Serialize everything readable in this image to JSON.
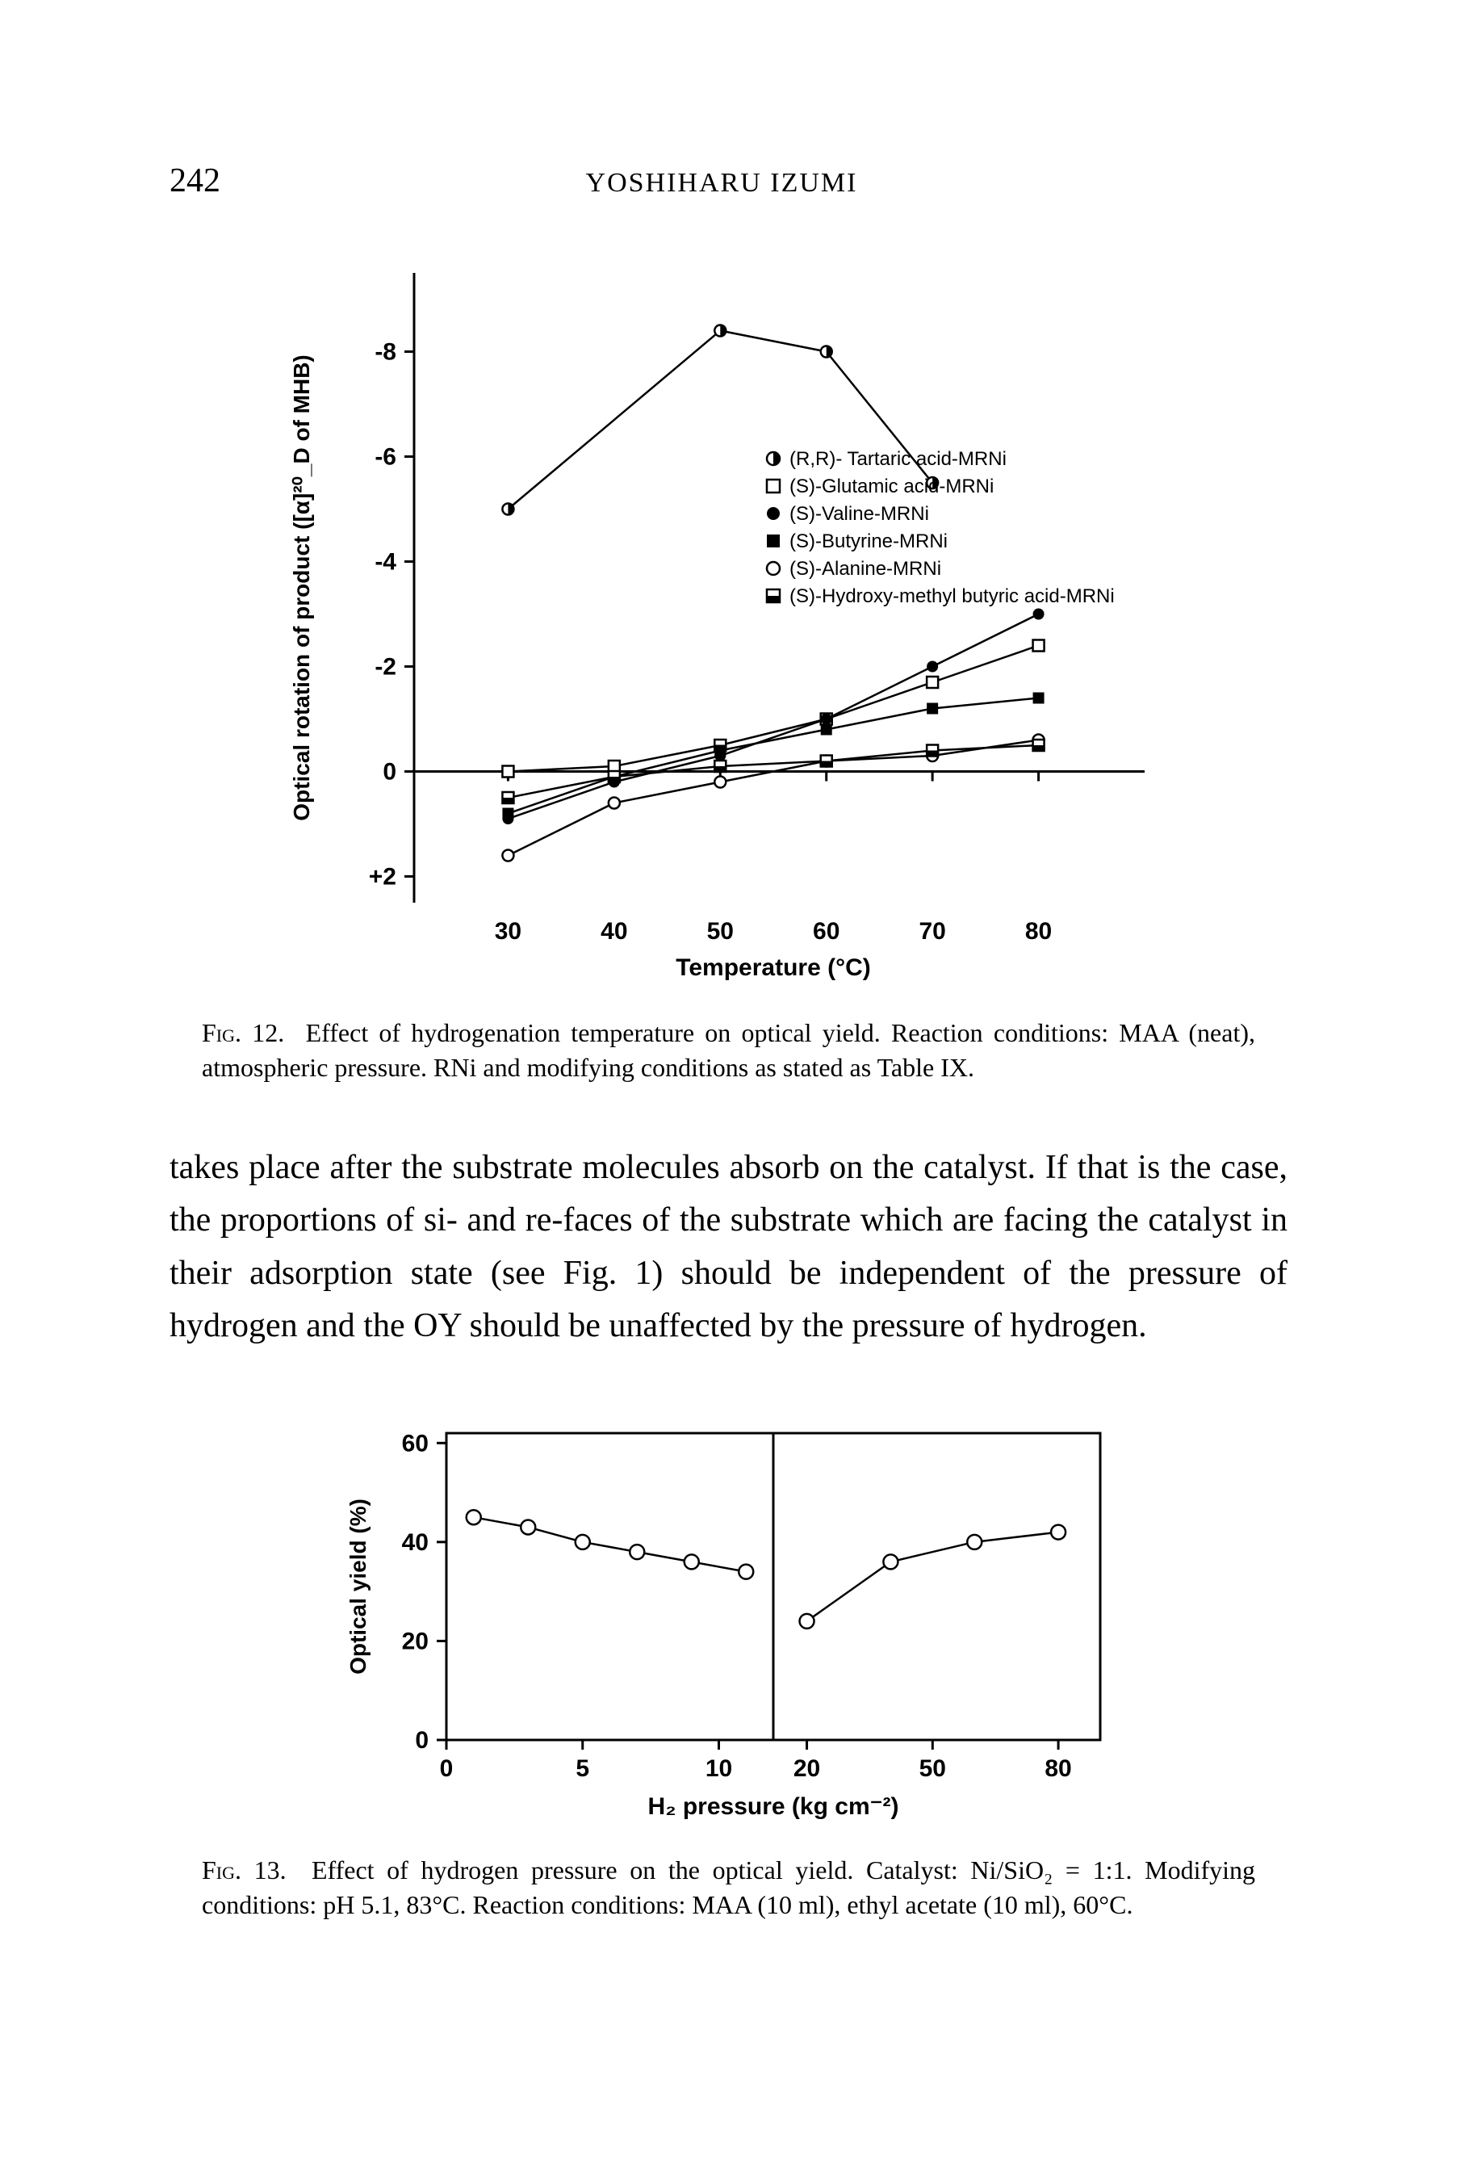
{
  "page": {
    "number": "242",
    "running_head": "YOSHIHARU IZUMI"
  },
  "fig12": {
    "caption_label": "Fig. 12.",
    "caption_text": "Effect of hydrogenation temperature on optical yield. Reaction conditions: MAA (neat), atmospheric pressure. RNi and modifying conditions as stated as Table IX.",
    "y_label": "Optical rotation of product ([α]²⁰_D of MHB)",
    "x_label": "Temperature (°C)",
    "x_ticks": [
      30,
      40,
      50,
      60,
      70,
      80
    ],
    "y_ticks": [
      -8,
      -6,
      -4,
      -2,
      0,
      2
    ],
    "y_tick_labels": [
      "-8",
      "-6",
      "-4",
      "-2",
      "0",
      "+2"
    ],
    "xlim": [
      20,
      90
    ],
    "ylim": [
      2.5,
      -9.5
    ],
    "background_color": "#ffffff",
    "axis_color": "#000000",
    "line_color": "#000000",
    "line_width": 2.5,
    "marker_size": 7,
    "legend": [
      {
        "marker": "circle-half-v",
        "label": "(R,R)- Tartaric acid-MRNi"
      },
      {
        "marker": "square-open",
        "label": "(S)-Glutamic acid-MRNi"
      },
      {
        "marker": "circle-filled",
        "label": "(S)-Valine-MRNi"
      },
      {
        "marker": "square-filled",
        "label": "(S)-Butyrine-MRNi"
      },
      {
        "marker": "circle-open",
        "label": "(S)-Alanine-MRNi"
      },
      {
        "marker": "square-half",
        "label": "(S)-Hydroxy-methyl butyric acid-MRNi"
      }
    ],
    "series": [
      {
        "marker": "circle-half-v",
        "points": [
          [
            30,
            -5.0
          ],
          [
            50,
            -8.4
          ],
          [
            60,
            -8.0
          ],
          [
            70,
            -5.5
          ]
        ]
      },
      {
        "marker": "square-open",
        "points": [
          [
            30,
            0.0
          ],
          [
            40,
            -0.1
          ],
          [
            50,
            -0.5
          ],
          [
            60,
            -1.0
          ],
          [
            70,
            -1.7
          ],
          [
            80,
            -2.4
          ]
        ]
      },
      {
        "marker": "circle-filled",
        "points": [
          [
            30,
            0.9
          ],
          [
            40,
            0.2
          ],
          [
            50,
            -0.3
          ],
          [
            60,
            -1.0
          ],
          [
            70,
            -2.0
          ],
          [
            80,
            -3.0
          ]
        ]
      },
      {
        "marker": "square-filled",
        "points": [
          [
            30,
            0.8
          ],
          [
            40,
            0.1
          ],
          [
            50,
            -0.4
          ],
          [
            60,
            -0.8
          ],
          [
            70,
            -1.2
          ],
          [
            80,
            -1.4
          ]
        ]
      },
      {
        "marker": "circle-open",
        "points": [
          [
            30,
            1.6
          ],
          [
            40,
            0.6
          ],
          [
            50,
            0.2
          ],
          [
            60,
            -0.2
          ],
          [
            70,
            -0.3
          ],
          [
            80,
            -0.6
          ]
        ]
      },
      {
        "marker": "square-half",
        "points": [
          [
            30,
            0.5
          ],
          [
            40,
            0.1
          ],
          [
            50,
            -0.1
          ],
          [
            60,
            -0.2
          ],
          [
            70,
            -0.4
          ],
          [
            80,
            -0.5
          ]
        ]
      }
    ]
  },
  "body": {
    "paragraph": "takes place after the substrate molecules absorb on the catalyst. If that is the case, the proportions of si- and re-faces of the substrate which are facing the catalyst in their adsorption state (see Fig. 1) should be independent of the pressure of hydrogen and the OY should be unaffected by the pressure of hydrogen."
  },
  "fig13": {
    "caption_label": "Fig. 13.",
    "caption_text": "Effect of hydrogen pressure on the optical yield. Catalyst: Ni/SiO₂ = 1:1. Modifying conditions: pH 5.1, 83°C. Reaction conditions: MAA (10 ml), ethyl acetate (10 ml), 60°C.",
    "y_label": "Optical yield (%)",
    "x_label": "H₂ pressure (kg cm⁻²)",
    "left_x_ticks": [
      0,
      5,
      10
    ],
    "right_x_ticks": [
      20,
      50,
      80
    ],
    "y_ticks": [
      0,
      20,
      40,
      60
    ],
    "left_xlim": [
      0,
      12
    ],
    "right_xlim": [
      12,
      90
    ],
    "ylim": [
      0,
      62
    ],
    "background_color": "#ffffff",
    "axis_color": "#000000",
    "line_color": "#000000",
    "line_width": 2.5,
    "marker": "circle-open",
    "marker_size": 9,
    "series_left": [
      [
        1,
        45
      ],
      [
        3,
        43
      ],
      [
        5,
        40
      ],
      [
        7,
        38
      ],
      [
        9,
        36
      ],
      [
        11,
        34
      ]
    ],
    "series_right": [
      [
        20,
        24
      ],
      [
        40,
        36
      ],
      [
        60,
        40
      ],
      [
        80,
        42
      ]
    ]
  }
}
